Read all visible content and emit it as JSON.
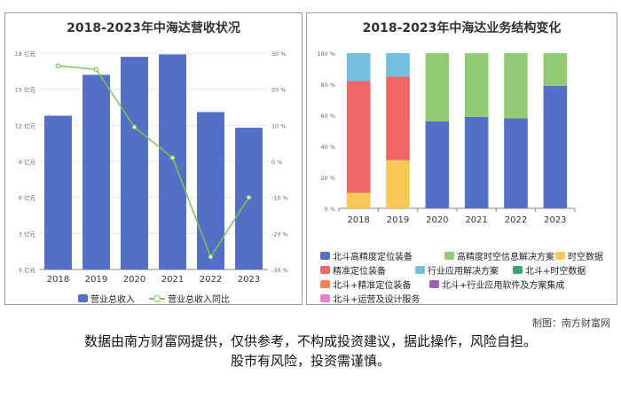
{
  "credit": "制图：南方财富网",
  "disclaimer": [
    "数据由南方财富网提供，仅供参考，不构成投资建议，据此操作，风险自担。",
    "股市有风险，投资需谨慎。"
  ],
  "chart_data": [
    {
      "type": "bar",
      "title": "2018-2023年中海达营收状况",
      "categories": [
        "2018",
        "2019",
        "2020",
        "2021",
        "2022",
        "2023"
      ],
      "series": [
        {
          "name": "营业总收入",
          "axis": "left",
          "type": "bar",
          "color": "#5470c6",
          "values": [
            12.8,
            16.2,
            17.7,
            17.9,
            13.1,
            11.8
          ]
        },
        {
          "name": "营业总收入同比",
          "axis": "right",
          "type": "line",
          "color": "#7dc45b",
          "values": [
            26.5,
            25.5,
            9.5,
            1.0,
            -26.5,
            -10.0
          ]
        }
      ],
      "y_left": {
        "min": 0,
        "max": 18,
        "ticks": [
          0,
          3,
          6,
          9,
          12,
          15,
          18
        ],
        "tick_labels": [
          "0 亿元",
          "3 亿元",
          "6 亿元",
          "9 亿元",
          "12 亿元",
          "15 亿元",
          "18 亿元"
        ]
      },
      "y_right": {
        "min": -30,
        "max": 30,
        "ticks": [
          -30,
          -20,
          -10,
          0,
          10,
          20,
          30
        ],
        "tick_labels": [
          "-30 %",
          "-20 %",
          "-10 %",
          "0 %",
          "10 %",
          "20 %",
          "30 %"
        ]
      },
      "legend": [
        "营业总收入",
        "营业总收入同比"
      ],
      "legend_position": "bottom",
      "grid": true
    },
    {
      "type": "bar",
      "stacked": true,
      "title": "2018-2023年中海达业务结构变化",
      "categories": [
        "2018",
        "2019",
        "2020",
        "2021",
        "2022",
        "2023"
      ],
      "y": {
        "min": 0,
        "max": 100,
        "ticks": [
          0,
          20,
          40,
          60,
          80,
          100
        ],
        "tick_labels": [
          "0 %",
          "20 %",
          "40 %",
          "60 %",
          "80 %",
          "100 %"
        ]
      },
      "series": [
        {
          "name": "北斗高精度定位装备",
          "color": "#5470c6",
          "values": [
            0,
            0,
            56,
            59,
            58,
            79
          ]
        },
        {
          "name": "高精度时空信息解决方案",
          "color": "#91cc75",
          "values": [
            0,
            0,
            44,
            41,
            42,
            21
          ]
        },
        {
          "name": "时空数据",
          "color": "#fac858",
          "values": [
            10,
            31,
            0,
            0,
            0,
            0
          ]
        },
        {
          "name": "精准定位装备",
          "color": "#ee6666",
          "values": [
            72,
            54,
            0,
            0,
            0,
            0
          ]
        },
        {
          "name": "行业应用解决方案",
          "color": "#73c0de",
          "values": [
            18,
            15,
            0,
            0,
            0,
            0
          ]
        },
        {
          "name": "北斗+时空数据",
          "color": "#3ba272",
          "values": [
            0,
            0,
            0,
            0,
            0,
            0
          ]
        },
        {
          "name": "北斗+精准定位装备",
          "color": "#fc8452",
          "values": [
            0,
            0,
            0,
            0,
            0,
            0
          ]
        },
        {
          "name": "北斗+行业应用软件及方案集成",
          "color": "#9a60b4",
          "values": [
            0,
            0,
            0,
            0,
            0,
            0
          ]
        },
        {
          "name": "北斗+运营及设计服务",
          "color": "#ea7ccc",
          "values": [
            0,
            0,
            0,
            0,
            0,
            0
          ]
        }
      ],
      "stack_order": [
        "北斗高精度定位装备",
        "高精度时空信息解决方案",
        "时空数据",
        "精准定位装备",
        "行业应用解决方案"
      ],
      "legend_position": "bottom",
      "grid": false
    }
  ]
}
